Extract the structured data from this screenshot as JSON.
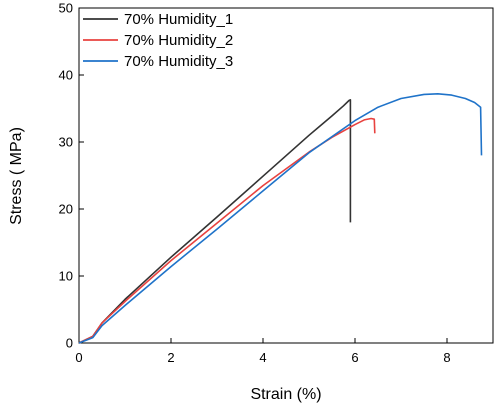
{
  "chart_data": {
    "type": "line",
    "xlabel": "Strain (%)",
    "ylabel": "Stress ( MPa)",
    "xlim": [
      0,
      9
    ],
    "ylim": [
      0,
      50
    ],
    "x_ticks": [
      0,
      2,
      4,
      6,
      8
    ],
    "y_ticks": [
      0,
      10,
      20,
      30,
      40,
      50
    ],
    "grid": false,
    "legend_position": "top-left",
    "series": [
      {
        "name": "70% Humidity_1",
        "color": "#333333",
        "points": [
          [
            0,
            0
          ],
          [
            0.3,
            1.0
          ],
          [
            0.5,
            3.0
          ],
          [
            1.0,
            6.5
          ],
          [
            2.0,
            12.8
          ],
          [
            3.0,
            18.8
          ],
          [
            4.0,
            24.9
          ],
          [
            5.0,
            31.0
          ],
          [
            5.5,
            33.9
          ],
          [
            5.75,
            35.4
          ],
          [
            5.87,
            36.2
          ],
          [
            5.9,
            36.3
          ],
          [
            5.9,
            18.0
          ]
        ]
      },
      {
        "name": "70% Humidity_2",
        "color": "#e8423f",
        "points": [
          [
            0,
            0
          ],
          [
            0.3,
            1.0
          ],
          [
            0.5,
            3.0
          ],
          [
            1.0,
            6.2
          ],
          [
            2.0,
            12.3
          ],
          [
            3.0,
            17.9
          ],
          [
            4.0,
            23.5
          ],
          [
            5.0,
            28.5
          ],
          [
            5.5,
            30.7
          ],
          [
            6.0,
            32.6
          ],
          [
            6.2,
            33.3
          ],
          [
            6.35,
            33.5
          ],
          [
            6.42,
            33.4
          ],
          [
            6.43,
            31.3
          ]
        ]
      },
      {
        "name": "70% Humidity_3",
        "color": "#1f73c9",
        "points": [
          [
            0,
            0
          ],
          [
            0.3,
            0.8
          ],
          [
            0.5,
            2.6
          ],
          [
            1.0,
            5.6
          ],
          [
            2.0,
            11.4
          ],
          [
            3.0,
            17.0
          ],
          [
            4.0,
            22.7
          ],
          [
            5.0,
            28.4
          ],
          [
            6.0,
            33.2
          ],
          [
            6.5,
            35.2
          ],
          [
            7.0,
            36.5
          ],
          [
            7.5,
            37.1
          ],
          [
            7.8,
            37.2
          ],
          [
            8.1,
            37.0
          ],
          [
            8.4,
            36.5
          ],
          [
            8.6,
            35.9
          ],
          [
            8.73,
            35.2
          ],
          [
            8.75,
            28.0
          ]
        ]
      }
    ]
  }
}
